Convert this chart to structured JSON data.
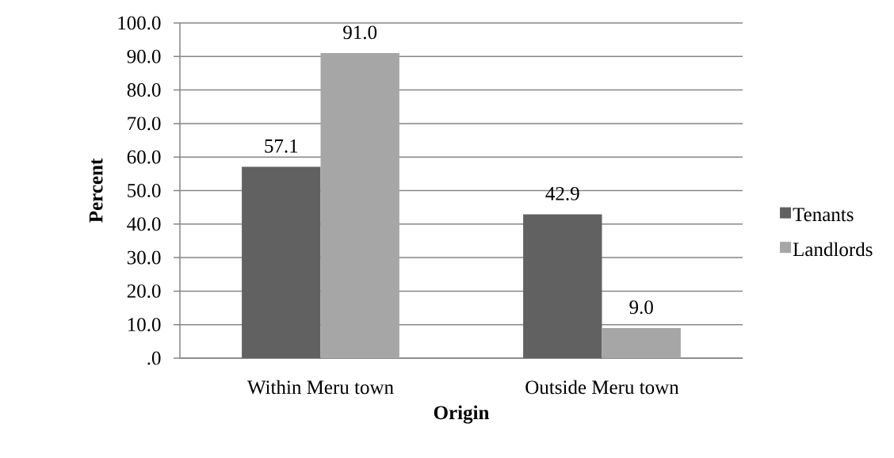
{
  "chart_data": {
    "type": "bar",
    "xlabel": "Origin",
    "ylabel": "Percent",
    "categories": [
      "Within Meru town",
      "Outside Meru town"
    ],
    "series": [
      {
        "name": "Tenants",
        "color": "#616161",
        "values": [
          57.1,
          42.9
        ],
        "value_labels": [
          "57.1",
          "42.9"
        ]
      },
      {
        "name": "Landlords",
        "color": "#a6a6a6",
        "values": [
          91.0,
          9.0
        ],
        "value_labels": [
          "91.0",
          "9.0"
        ]
      }
    ],
    "ylim": [
      0,
      100
    ],
    "yticks": [
      {
        "value": 0,
        "label": ".0"
      },
      {
        "value": 10,
        "label": "10.0"
      },
      {
        "value": 20,
        "label": "20.0"
      },
      {
        "value": 30,
        "label": "30.0"
      },
      {
        "value": 40,
        "label": "40.0"
      },
      {
        "value": 50,
        "label": "50.0"
      },
      {
        "value": 60,
        "label": "60.0"
      },
      {
        "value": 70,
        "label": "70.0"
      },
      {
        "value": 80,
        "label": "80.0"
      },
      {
        "value": 90,
        "label": "90.0"
      },
      {
        "value": 100,
        "label": "100.0"
      }
    ],
    "grid": "y",
    "legend": "right"
  }
}
